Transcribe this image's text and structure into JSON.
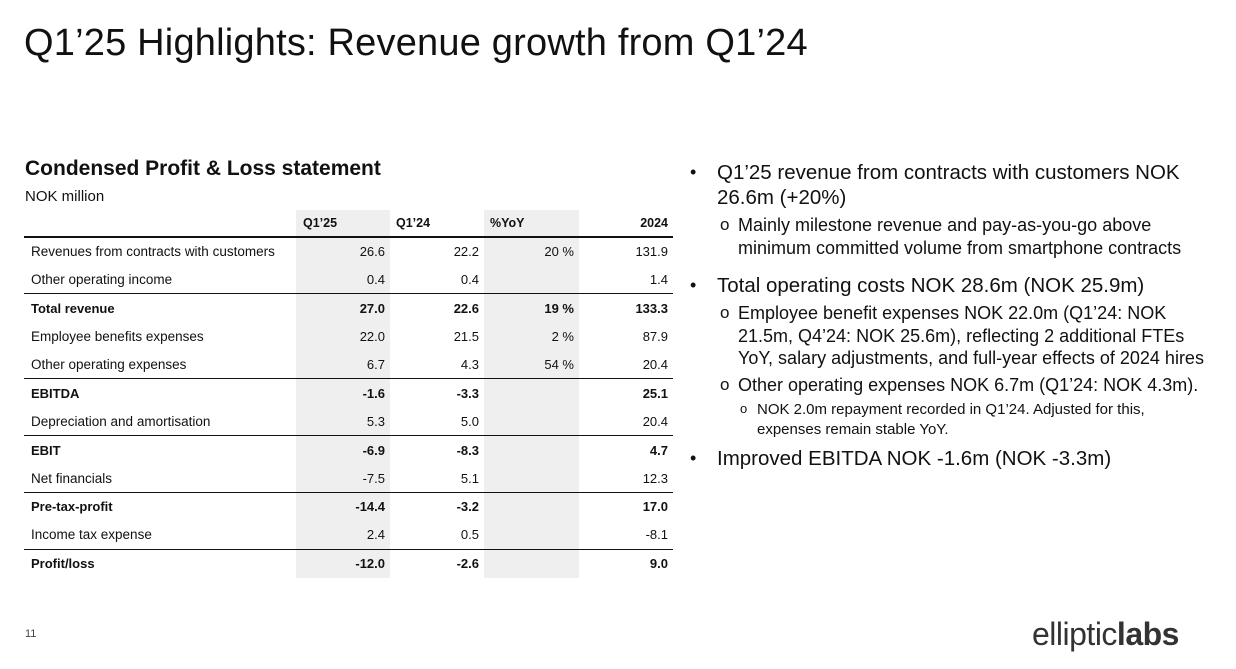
{
  "title": "Q1’25 Highlights: Revenue growth from Q1’24",
  "pl": {
    "heading": "Condensed Profit & Loss statement",
    "unit": "NOK million",
    "columns": [
      "Q1’25",
      "Q1’24",
      "%YoY",
      "2024"
    ],
    "rows": [
      {
        "label": "Revenues from contracts with customers",
        "q125": "26.6",
        "q124": "22.2",
        "yoy": "20 %",
        "fy": "131.9"
      },
      {
        "label": "Other operating income",
        "q125": "0.4",
        "q124": "0.4",
        "yoy": "",
        "fy": "1.4"
      },
      {
        "label": "Total revenue",
        "q125": "27.0",
        "q124": "22.6",
        "yoy": "19 %",
        "fy": "133.3"
      },
      {
        "label": "Employee benefits expenses",
        "q125": "22.0",
        "q124": "21.5",
        "yoy": "2 %",
        "fy": "87.9"
      },
      {
        "label": "Other operating expenses",
        "q125": "6.7",
        "q124": "4.3",
        "yoy": "54 %",
        "fy": "20.4"
      },
      {
        "label": "EBITDA",
        "q125": "-1.6",
        "q124": "-3.3",
        "yoy": "",
        "fy": "25.1"
      },
      {
        "label": "Depreciation and amortisation",
        "q125": "5.3",
        "q124": "5.0",
        "yoy": "",
        "fy": "20.4"
      },
      {
        "label": "EBIT",
        "q125": "-6.9",
        "q124": "-8.3",
        "yoy": "",
        "fy": "4.7"
      },
      {
        "label": "Net financials",
        "q125": "-7.5",
        "q124": "5.1",
        "yoy": "",
        "fy": "12.3"
      },
      {
        "label": "Pre-tax-profit",
        "q125": "-14.4",
        "q124": "-3.2",
        "yoy": "",
        "fy": "17.0"
      },
      {
        "label": "Income tax expense",
        "q125": "2.4",
        "q124": "0.5",
        "yoy": "",
        "fy": "-8.1"
      },
      {
        "label": "Profit/loss",
        "q125": "-12.0",
        "q124": "-2.6",
        "yoy": "",
        "fy": "9.0"
      }
    ]
  },
  "bullets": {
    "revenue": "Q1’25 revenue from contracts with customers NOK 26.6m (+20%)",
    "revenue_sub": "Mainly milestone revenue and pay-as-you-go above minimum committed volume from smartphone contracts",
    "costs": "Total operating costs NOK 28.6m (NOK 25.9m)",
    "costs_sub1": "Employee benefit expenses NOK 22.0m (Q1’24: NOK 21.5m, Q4’24: NOK 25.6m), reflecting 2 additional FTEs YoY, salary adjustments, and full-year effects of 2024 hires",
    "costs_sub2": "Other operating expenses NOK 6.7m (Q1’24: NOK 4.3m).",
    "costs_sub2_sub": "NOK 2.0m repayment recorded in Q1’24. Adjusted for this, expenses remain stable YoY.",
    "ebitda": "Improved EBITDA NOK -1.6m (NOK -3.3m)",
    "sub_marker": "o"
  },
  "footer": {
    "page_number": "11",
    "logo_part1": "elliptic",
    "logo_part2": "labs"
  }
}
